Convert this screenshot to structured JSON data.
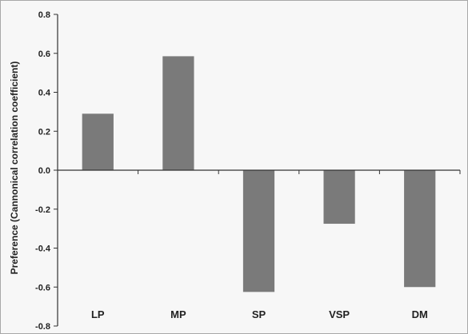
{
  "chart_data": {
    "type": "bar",
    "title": "",
    "xlabel": "",
    "ylabel": "Preference (Cannonical correlation coefficient)",
    "categories": [
      "LP",
      "MP",
      "SP",
      "VSP",
      "DM"
    ],
    "values": [
      0.29,
      0.585,
      -0.625,
      -0.275,
      -0.6
    ],
    "ylim": [
      -0.8,
      0.8
    ],
    "yticks": [
      0.8,
      0.6,
      0.4,
      0.2,
      0.0,
      -0.2,
      -0.4,
      -0.6,
      -0.8
    ],
    "ytick_labels": [
      "0.8",
      "0.6",
      "0.4",
      "0.2",
      "0.0",
      "-0.2",
      "-0.4",
      "-0.6",
      "-0.8"
    ],
    "bar_color": "#7a7a7a",
    "grid": false,
    "legend": "none"
  }
}
